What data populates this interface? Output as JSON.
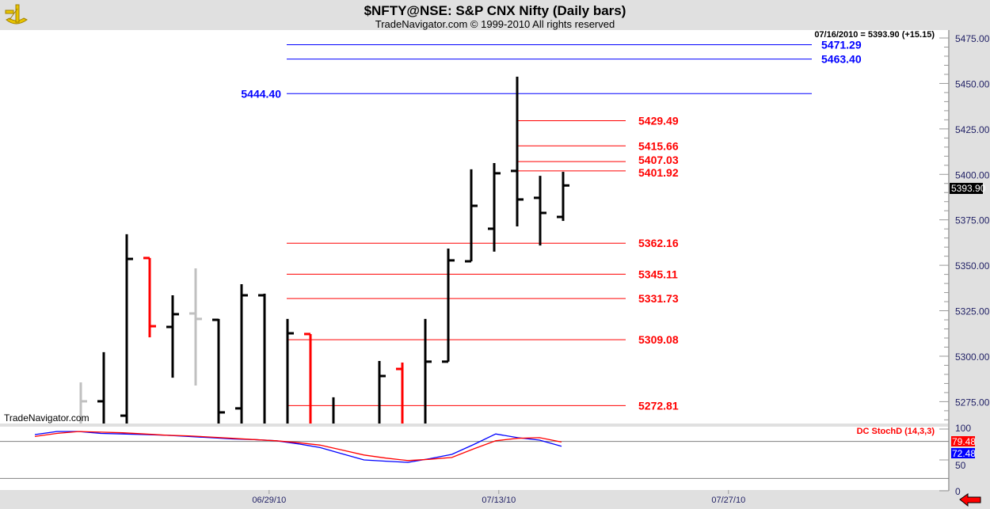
{
  "header": {
    "title": "$NFTY@NSE:  S&P CNX Nifty  (Daily bars)",
    "copyright": "TradeNavigator.com © 1999-2010 All rights reserved"
  },
  "watermark": "TradeNavigator.com",
  "last_quote": "07/16/2010 = 5393.90 (+15.15)",
  "last_price_tag": "5393.90",
  "colors": {
    "blue_level": "#0000ff",
    "red_level": "#ff0000",
    "bar": "#000000",
    "down_bar": "#ff0000",
    "gray_bar": "#c0c0c0",
    "stoch_blue": "#0000ff",
    "stoch_red": "#ff0000"
  },
  "chart_data": [
    {
      "type": "ohlc",
      "title": "S&P CNX Nifty (Daily bars)",
      "ylim": [
        5263,
        5480
      ],
      "y_ticks": [
        "5475.00",
        "5450.00",
        "5425.00",
        "5400.00",
        "5375.00",
        "5350.00",
        "5325.00",
        "5300.00",
        "5275.00"
      ],
      "y_tick_values": [
        5475,
        5450,
        5425,
        5400,
        5375,
        5350,
        5325,
        5300,
        5275
      ],
      "x_ticks": [
        {
          "label": "06/29/10",
          "bar": 8.2
        },
        {
          "label": "07/13/10",
          "bar": 18.2
        },
        {
          "label": "07/27/10",
          "bar": 28.2
        }
      ],
      "bars": [
        {
          "o": null,
          "h": 5285.6,
          "l": 5255,
          "c": 5275.2,
          "color": "gray"
        },
        {
          "o": 5275.2,
          "h": 5302.2,
          "l": 5250,
          "c": null,
          "color": "black"
        },
        {
          "o": 5267.3,
          "h": 5367.1,
          "l": 5255,
          "c": 5353.5,
          "color": "black"
        },
        {
          "o": 5354.0,
          "h": 5354.0,
          "l": 5310.4,
          "c": 5316.5,
          "color": "red"
        },
        {
          "o": 5316.1,
          "h": 5333.5,
          "l": 5288.2,
          "c": 5323.1,
          "color": "black"
        },
        {
          "o": 5323.5,
          "h": 5348.3,
          "l": 5283.9,
          "c": 5320.5,
          "color": "gray"
        },
        {
          "o": 5320.0,
          "h": 5320.5,
          "l": 5255,
          "c": 5269.1,
          "color": "black"
        },
        {
          "o": 5271.3,
          "h": 5339.6,
          "l": 5255,
          "c": 5333.5,
          "color": "black"
        },
        {
          "o": 5333.5,
          "h": 5334.4,
          "l": 5250,
          "c": null,
          "color": "black"
        },
        {
          "o": null,
          "h": 5320.5,
          "l": 5250,
          "c": 5312.6,
          "color": "black"
        },
        {
          "o": 5312.2,
          "h": 5312.2,
          "l": 5250,
          "c": null,
          "color": "red"
        },
        {
          "o": null,
          "h": 5277.4,
          "l": 5250,
          "c": null,
          "color": "black"
        },
        {
          "o": null,
          "h": null,
          "l": null,
          "c": null,
          "color": "black"
        },
        {
          "o": null,
          "h": 5297.4,
          "l": 5250,
          "c": 5289.1,
          "color": "black"
        },
        {
          "o": 5293.0,
          "h": 5296.5,
          "l": 5250,
          "c": null,
          "color": "red"
        },
        {
          "o": null,
          "h": 5320.5,
          "l": 5250,
          "c": 5297.0,
          "color": "black"
        },
        {
          "o": 5297.0,
          "h": 5359.2,
          "l": 5297.0,
          "c": 5352.7,
          "color": "black"
        },
        {
          "o": 5352.2,
          "h": 5402.8,
          "l": 5352.2,
          "c": 5382.7,
          "color": "black"
        },
        {
          "o": 5370.1,
          "h": 5406.2,
          "l": 5357.5,
          "c": 5400.6,
          "color": "black"
        },
        {
          "o": 5401.9,
          "h": 5453.7,
          "l": 5371.4,
          "c": 5386.2,
          "color": "black"
        },
        {
          "o": 5387.1,
          "h": 5399.2,
          "l": 5360.9,
          "c": 5378.8,
          "color": "black"
        },
        {
          "o": 5376.6,
          "h": 5401.4,
          "l": 5374.4,
          "c": 5393.9,
          "color": "black"
        }
      ],
      "levels": [
        {
          "value": 5471.29,
          "label": "5471.29",
          "color": "blue",
          "from_bar": 9,
          "label_side": "right"
        },
        {
          "value": 5463.4,
          "label": "5463.40",
          "color": "blue",
          "from_bar": 9,
          "label_side": "right"
        },
        {
          "value": 5444.4,
          "label": "5444.40",
          "color": "blue",
          "from_bar": 9,
          "label_side": "left"
        },
        {
          "value": 5429.49,
          "label": "5429.49",
          "color": "red",
          "from_bar": 19
        },
        {
          "value": 5415.66,
          "label": "5415.66",
          "color": "red",
          "from_bar": 19
        },
        {
          "value": 5407.03,
          "label": "5407.03",
          "color": "red",
          "from_bar": 19
        },
        {
          "value": 5401.92,
          "label": "5401.92",
          "color": "red",
          "from_bar": 19
        },
        {
          "value": 5362.16,
          "label": "5362.16",
          "color": "red",
          "from_bar": 9
        },
        {
          "value": 5345.11,
          "label": "5345.11",
          "color": "red",
          "from_bar": 9
        },
        {
          "value": 5331.73,
          "label": "5331.73",
          "color": "red",
          "from_bar": 9
        },
        {
          "value": 5309.08,
          "label": "5309.08",
          "color": "red",
          "from_bar": 9
        },
        {
          "value": 5272.81,
          "label": "5272.81",
          "color": "red",
          "from_bar": 9
        }
      ]
    },
    {
      "type": "line",
      "title": "DC StochD (14,3,3)",
      "ylim": [
        0,
        100
      ],
      "y_ticks": [
        "100",
        "50",
        "0"
      ],
      "y_tick_values": [
        100,
        50,
        0
      ],
      "ref_lines": [
        80,
        20
      ],
      "start_bar": -2,
      "series": [
        {
          "name": "blue",
          "last_label": "72.48",
          "values": [
            91,
            96,
            96,
            93,
            92,
            91,
            90,
            88,
            86,
            84,
            83,
            81,
            76,
            70,
            60,
            50,
            48,
            46,
            52,
            59,
            75,
            92,
            86,
            82,
            72
          ]
        },
        {
          "name": "red",
          "last_label": "79.48",
          "values": [
            88,
            93,
            96,
            95,
            94,
            92,
            90,
            89,
            87,
            85,
            83,
            81,
            78,
            74,
            66,
            58,
            53,
            49,
            51,
            54,
            68,
            81,
            85,
            86,
            79
          ]
        }
      ]
    }
  ]
}
